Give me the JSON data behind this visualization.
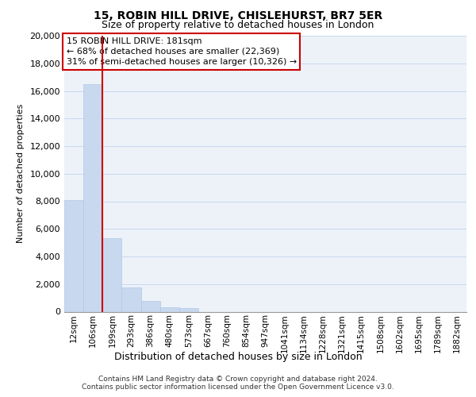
{
  "title_line1": "15, ROBIN HILL DRIVE, CHISLEHURST, BR7 5ER",
  "title_line2": "Size of property relative to detached houses in London",
  "xlabel": "Distribution of detached houses by size in London",
  "ylabel": "Number of detached properties",
  "bar_labels": [
    "12sqm",
    "106sqm",
    "199sqm",
    "293sqm",
    "386sqm",
    "480sqm",
    "573sqm",
    "667sqm",
    "760sqm",
    "854sqm",
    "947sqm",
    "1041sqm",
    "1134sqm",
    "1228sqm",
    "1321sqm",
    "1415sqm",
    "1508sqm",
    "1602sqm",
    "1695sqm",
    "1789sqm",
    "1882sqm"
  ],
  "bar_values": [
    8100,
    16500,
    5300,
    1750,
    800,
    300,
    270,
    0,
    0,
    0,
    0,
    0,
    0,
    0,
    0,
    0,
    0,
    0,
    0,
    0,
    0
  ],
  "bar_color": "#c8d8ee",
  "bar_edge_color": "#b0c8e8",
  "vertical_line_x": 1.5,
  "vertical_line_color": "#cc0000",
  "ylim": [
    0,
    20000
  ],
  "yticks": [
    0,
    2000,
    4000,
    6000,
    8000,
    10000,
    12000,
    14000,
    16000,
    18000,
    20000
  ],
  "annotation_box_text": "15 ROBIN HILL DRIVE: 181sqm\n← 68% of detached houses are smaller (22,369)\n31% of semi-detached houses are larger (10,326) →",
  "annotation_box_color": "#ffffff",
  "annotation_box_edge_color": "#cc0000",
  "footer_line1": "Contains HM Land Registry data © Crown copyright and database right 2024.",
  "footer_line2": "Contains public sector information licensed under the Open Government Licence v3.0.",
  "grid_color": "#c8d8ec",
  "background_color": "#edf2f9"
}
